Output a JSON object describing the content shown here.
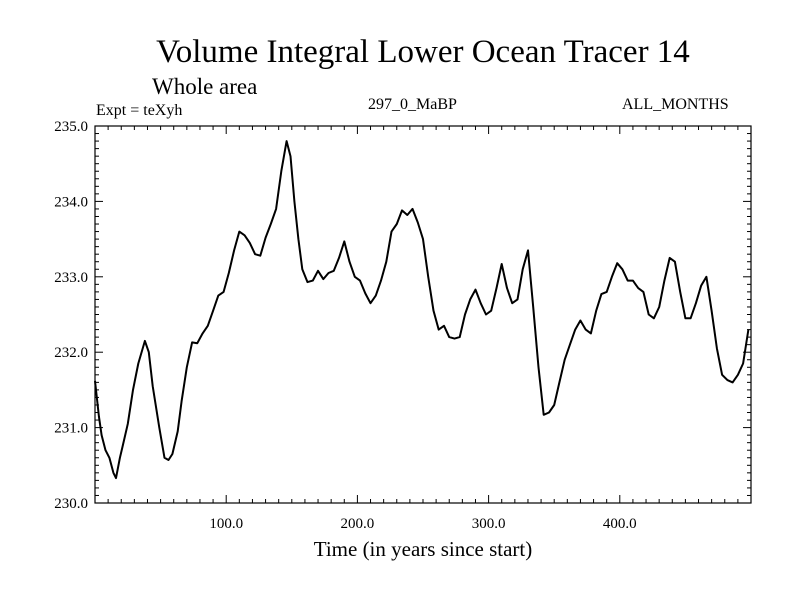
{
  "chart_data": {
    "type": "line",
    "title": "Volume Integral Lower Ocean Tracer 14",
    "subtitle": "Whole area",
    "header_left": "Expt = teXyh",
    "header_center": "297_0_MaBP",
    "header_right": "ALL_MONTHS",
    "xlabel": "Time (in years since start)",
    "ylabel": "",
    "xlim": [
      0,
      500
    ],
    "ylim": [
      230.0,
      235.0
    ],
    "x_ticks": [
      100,
      200,
      300,
      400
    ],
    "x_tick_labels": [
      "100.0",
      "200.0",
      "300.0",
      "400.0"
    ],
    "y_ticks": [
      230,
      231,
      232,
      233,
      234,
      235
    ],
    "y_tick_labels": [
      "230.0",
      "231.0",
      "232.0",
      "233.0",
      "234.0",
      "235.0"
    ],
    "series": [
      {
        "color": "#000000",
        "x": [
          0,
          3,
          5,
          8,
          11,
          14,
          16,
          19,
          21,
          25,
          29,
          33,
          38,
          41,
          44,
          49,
          53,
          56,
          59,
          63,
          66,
          70,
          74,
          78,
          82,
          86,
          90,
          94,
          98,
          102,
          106,
          110,
          114,
          118,
          122,
          126,
          130,
          134,
          138,
          142,
          146,
          149,
          152,
          155,
          158,
          162,
          166,
          170,
          174,
          178,
          182,
          186,
          190,
          194,
          198,
          202,
          206,
          210,
          214,
          218,
          222,
          226,
          230,
          234,
          238,
          242,
          246,
          250,
          254,
          258,
          262,
          266,
          270,
          274,
          278,
          282,
          286,
          290,
          294,
          298,
          302,
          306,
          310,
          314,
          318,
          322,
          326,
          330,
          334,
          338,
          342,
          346,
          350,
          354,
          358,
          362,
          366,
          370,
          374,
          378,
          382,
          386,
          390,
          394,
          398,
          402,
          406,
          410,
          414,
          418,
          422,
          426,
          430,
          434,
          438,
          442,
          446,
          450,
          454,
          458,
          462,
          466,
          470,
          474,
          478,
          482,
          486,
          490,
          494,
          498
        ],
        "values": [
          231.62,
          231.15,
          230.9,
          230.7,
          230.6,
          230.4,
          230.33,
          230.6,
          230.75,
          231.05,
          231.5,
          231.85,
          232.15,
          232.0,
          231.55,
          231.0,
          230.6,
          230.57,
          230.65,
          230.95,
          231.35,
          231.8,
          232.13,
          232.12,
          232.25,
          232.35,
          232.55,
          232.75,
          232.8,
          233.05,
          233.35,
          233.6,
          233.55,
          233.45,
          233.3,
          233.28,
          233.52,
          233.7,
          233.9,
          234.4,
          234.8,
          234.6,
          234.0,
          233.5,
          233.1,
          232.93,
          232.95,
          233.08,
          232.97,
          233.05,
          233.08,
          233.25,
          233.47,
          233.2,
          233.0,
          232.95,
          232.78,
          232.65,
          232.75,
          232.95,
          233.2,
          233.6,
          233.7,
          233.88,
          233.82,
          233.9,
          233.72,
          233.5,
          233.0,
          232.55,
          232.3,
          232.35,
          232.2,
          232.18,
          232.2,
          232.5,
          232.7,
          232.83,
          232.65,
          232.5,
          232.55,
          232.85,
          233.17,
          232.85,
          232.65,
          232.7,
          233.1,
          233.35,
          232.6,
          231.8,
          231.17,
          231.2,
          231.3,
          231.6,
          231.9,
          232.1,
          232.3,
          232.42,
          232.3,
          232.25,
          232.55,
          232.77,
          232.8,
          233.0,
          233.18,
          233.1,
          232.95,
          232.95,
          232.85,
          232.8,
          232.5,
          232.45,
          232.6,
          232.95,
          233.25,
          233.2,
          232.8,
          232.45,
          232.45,
          232.65,
          232.88,
          233.0,
          232.55,
          232.05,
          231.7,
          231.63,
          231.6,
          231.7,
          231.85,
          232.3
        ]
      }
    ]
  }
}
